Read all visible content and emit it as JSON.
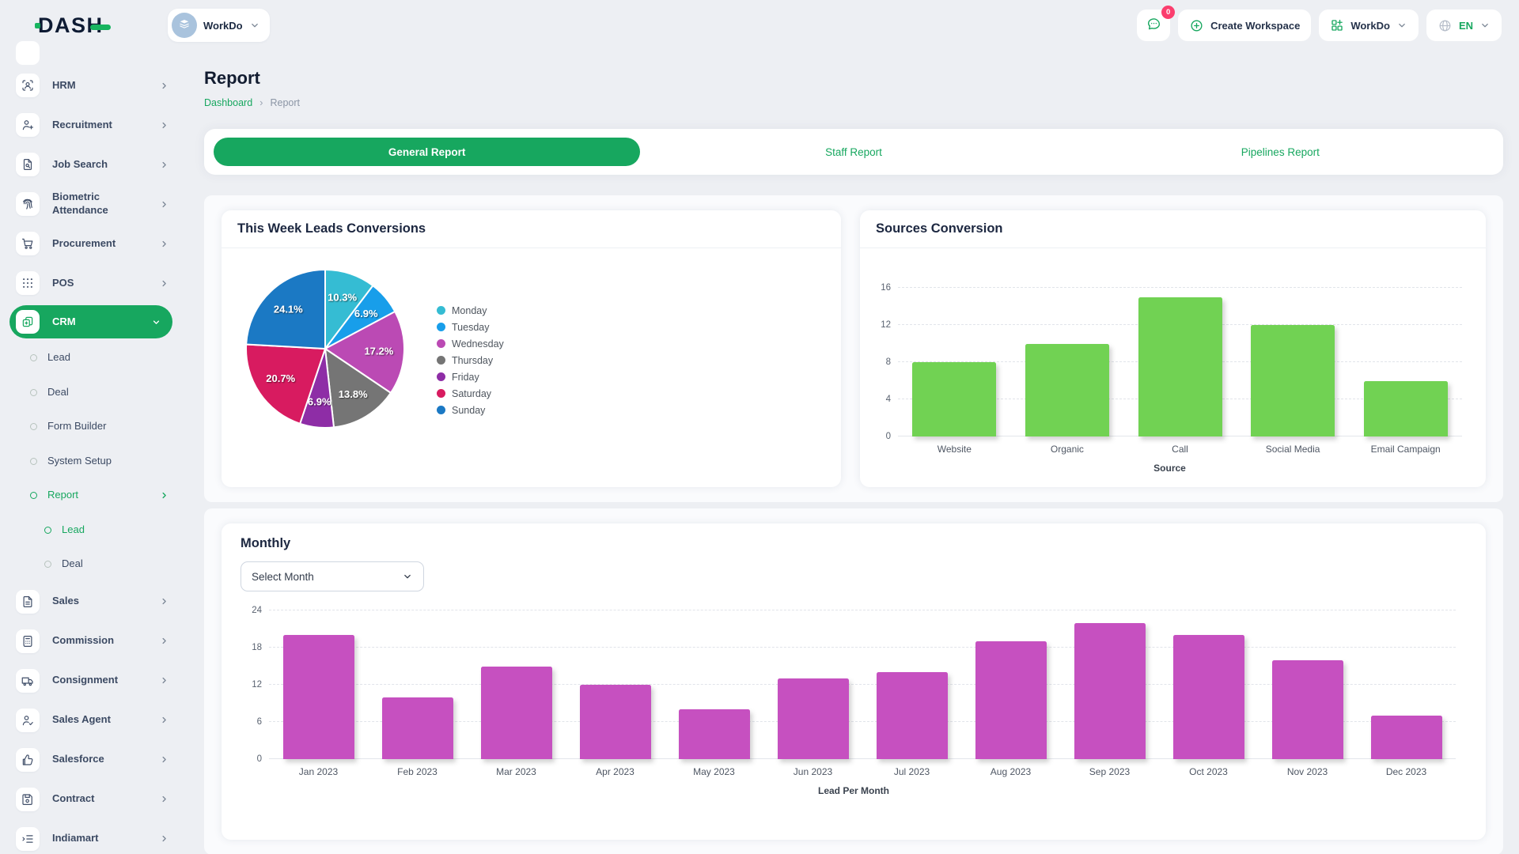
{
  "topbar": {
    "logo_text": "DASH",
    "workspace_switcher": {
      "label": "WorkDo",
      "icon": "building-icon"
    },
    "messages": {
      "badge": "0",
      "icon": "message-icon"
    },
    "create_workspace": {
      "label": "Create Workspace",
      "icon": "plus-circle-icon"
    },
    "workspace_menu": {
      "label": "WorkDo",
      "icon": "grid-plus-icon"
    },
    "language": {
      "label": "EN",
      "icon": "globe-icon"
    }
  },
  "page": {
    "title": "Report",
    "breadcrumb": {
      "items": [
        "Dashboard",
        "Report"
      ]
    }
  },
  "tabs": [
    {
      "label": "General Report",
      "active": true
    },
    {
      "label": "Staff Report",
      "active": false
    },
    {
      "label": "Pipelines Report",
      "active": false
    }
  ],
  "sidebar": {
    "items": [
      {
        "label": "HRM",
        "icon": "hrm-icon",
        "level": 0,
        "chevron": "right"
      },
      {
        "label": "Recruitment",
        "icon": "recruitment-icon",
        "level": 0,
        "chevron": "right"
      },
      {
        "label": "Job Search",
        "icon": "job-search-icon",
        "level": 0,
        "chevron": "right"
      },
      {
        "label": "Biometric Attendance",
        "icon": "biometric-icon",
        "level": 0,
        "chevron": "right"
      },
      {
        "label": "Procurement",
        "icon": "procurement-icon",
        "level": 0,
        "chevron": "right"
      },
      {
        "label": "POS",
        "icon": "pos-icon",
        "level": 0,
        "chevron": "right"
      },
      {
        "label": "CRM",
        "icon": "crm-icon",
        "level": 0,
        "chevron": "down",
        "active": true
      },
      {
        "label": "Lead",
        "level": 1
      },
      {
        "label": "Deal",
        "level": 1
      },
      {
        "label": "Form Builder",
        "level": 1
      },
      {
        "label": "System Setup",
        "level": 1
      },
      {
        "label": "Report",
        "level": 1,
        "chevron": "right",
        "active": true
      },
      {
        "label": "Lead",
        "level": 2,
        "active": true
      },
      {
        "label": "Deal",
        "level": 2
      },
      {
        "label": "Sales",
        "icon": "sales-icon",
        "level": 0,
        "chevron": "right"
      },
      {
        "label": "Commission",
        "icon": "commission-icon",
        "level": 0,
        "chevron": "right"
      },
      {
        "label": "Consignment",
        "icon": "consignment-icon",
        "level": 0,
        "chevron": "right"
      },
      {
        "label": "Sales Agent",
        "icon": "sales-agent-icon",
        "level": 0,
        "chevron": "right"
      },
      {
        "label": "Salesforce",
        "icon": "salesforce-icon",
        "level": 0,
        "chevron": "right"
      },
      {
        "label": "Contract",
        "icon": "contract-icon",
        "level": 0,
        "chevron": "right"
      },
      {
        "label": "Indiamart",
        "icon": "indiamart-icon",
        "level": 0,
        "chevron": "right"
      }
    ]
  },
  "monthly": {
    "title": "Monthly",
    "select_placeholder": "Select Month"
  },
  "colors": {
    "accent_green": "#17a75f",
    "bar_green": "#71d253",
    "bar_magenta": "#c650c0",
    "badge_red": "#fb3e6e"
  },
  "chart_data": [
    {
      "type": "pie",
      "title": "This Week Leads Conversions",
      "labels": [
        "Monday",
        "Tuesday",
        "Wednesday",
        "Thursday",
        "Friday",
        "Saturday",
        "Sunday"
      ],
      "values": [
        10.3,
        6.9,
        17.2,
        13.8,
        6.9,
        20.7,
        24.1
      ],
      "value_labels": [
        "10.3%",
        "6.9%",
        "17.2%",
        "13.8%",
        "6.9%",
        "20.7%",
        "24.1%"
      ],
      "colors": [
        "#35bcd3",
        "#189eea",
        "#bb4ab4",
        "#757575",
        "#8e2da6",
        "#d81b60",
        "#1b79c4"
      ],
      "legend_position": "right"
    },
    {
      "type": "bar",
      "title": "Sources Conversion",
      "categories": [
        "Website",
        "Organic",
        "Call",
        "Social Media",
        "Email Campaign"
      ],
      "values": [
        8,
        10,
        15,
        12,
        6
      ],
      "xlabel": "Source",
      "ylim": [
        0,
        16
      ],
      "yticks": [
        0,
        4,
        8,
        12,
        16
      ],
      "bar_color": "#71d253",
      "grid": true
    },
    {
      "type": "bar",
      "title": "Monthly",
      "categories": [
        "Jan 2023",
        "Feb 2023",
        "Mar 2023",
        "Apr 2023",
        "May 2023",
        "Jun 2023",
        "Jul 2023",
        "Aug 2023",
        "Sep 2023",
        "Oct 2023",
        "Nov 2023",
        "Dec 2023"
      ],
      "values": [
        20,
        10,
        15,
        12,
        8,
        13,
        14,
        19,
        22,
        20,
        16,
        7
      ],
      "xlabel": "Lead Per Month",
      "ylim": [
        0,
        24
      ],
      "yticks": [
        0,
        6,
        12,
        18,
        24
      ],
      "bar_color": "#c650c0",
      "grid": true
    }
  ]
}
